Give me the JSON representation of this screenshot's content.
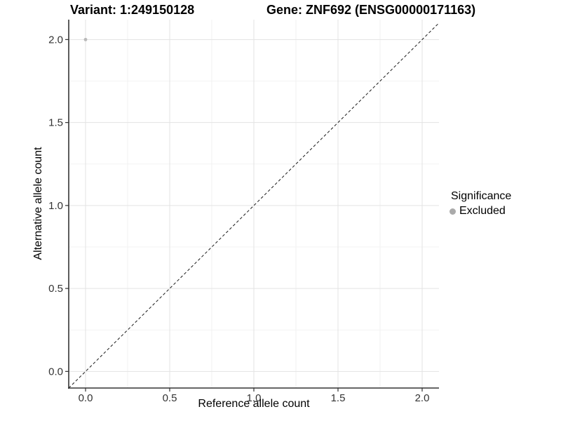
{
  "header": {
    "title_left": "Variant: 1:249150128",
    "title_right": "Gene: ZNF692 (ENSG00000171163)"
  },
  "chart_data": {
    "type": "scatter",
    "title": "Variant: 1:249150128    Gene: ZNF692 (ENSG00000171163)",
    "title_left": "Variant: 1:249150128",
    "title_right": "Gene: ZNF692 (ENSG00000171163)",
    "xlabel": "Reference allele count",
    "ylabel": "Alternative allele count",
    "xlim": [
      -0.1,
      2.1
    ],
    "ylim": [
      -0.1,
      2.12
    ],
    "x_ticks": [
      0.0,
      0.5,
      1.0,
      1.5,
      2.0
    ],
    "y_ticks": [
      0.0,
      0.5,
      1.0,
      1.5,
      2.0
    ],
    "x_tick_labels": [
      "0.0",
      "0.5",
      "1.0",
      "1.5",
      "2.0"
    ],
    "y_tick_labels": [
      "0.0",
      "0.5",
      "1.0",
      "1.5",
      "2.0"
    ],
    "minor_ticks_x": [
      0.25,
      0.75,
      1.25,
      1.75
    ],
    "minor_ticks_y": [
      0.25,
      0.75,
      1.25,
      1.75
    ],
    "grid": true,
    "series": [
      {
        "name": "Excluded",
        "points": [
          {
            "x": 0.0,
            "y": 2.0
          }
        ],
        "color": "#b9b9b9"
      }
    ],
    "reference_line": {
      "slope": 1,
      "intercept": 0,
      "style": "dashed",
      "color": "#1a1a1a"
    },
    "legend": {
      "title": "Significance",
      "position": "right",
      "items": [
        {
          "label": "Excluded",
          "color": "#aaaaaa"
        }
      ]
    },
    "colors": {
      "background": "#ffffff",
      "grid_major": "#e3e3e3",
      "grid_minor": "#efefef",
      "axis_line": "#333333",
      "tick_label": "#333333",
      "point": "#b9b9b9"
    }
  }
}
